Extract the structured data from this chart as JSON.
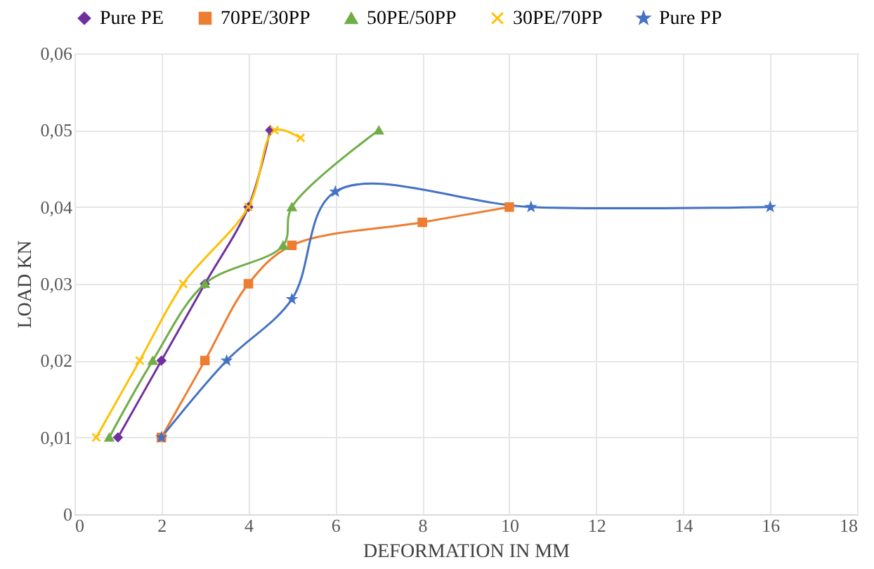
{
  "chart_data": {
    "type": "line",
    "xlabel": "DEFORMATION IN MM",
    "ylabel": "LOAD KN",
    "xlim": [
      0,
      18
    ],
    "xticks": [
      0,
      2,
      4,
      6,
      8,
      10,
      12,
      14,
      16,
      18
    ],
    "ylim": [
      0,
      0.06
    ],
    "yticks": [
      0,
      {
        "value": 0.01,
        "label": "0,01"
      },
      {
        "value": 0.02,
        "label": "0,02"
      },
      {
        "value": 0.03,
        "label": "0,03"
      },
      {
        "value": 0.04,
        "label": "0,04"
      },
      {
        "value": 0.05,
        "label": "0,05"
      },
      {
        "value": 0.06,
        "label": "0,06"
      }
    ],
    "grid": true,
    "legend": "top",
    "line_style": "solid",
    "series": [
      {
        "name": "Pure PE",
        "color": "#7030a0",
        "marker": "diamond",
        "x": [
          1,
          2,
          3,
          4,
          4.5
        ],
        "values": [
          0.01,
          0.02,
          0.03,
          0.04,
          0.05
        ]
      },
      {
        "name": "70PE/30PP",
        "color": "#ed7d31",
        "marker": "square",
        "x": [
          2,
          3,
          4,
          5,
          8,
          10
        ],
        "values": [
          0.01,
          0.02,
          0.03,
          0.035,
          0.038,
          0.04
        ]
      },
      {
        "name": "50PE/50PP",
        "color": "#70ad47",
        "marker": "triangle",
        "x": [
          0.8,
          1.8,
          3,
          4.8,
          5,
          7
        ],
        "values": [
          0.01,
          0.02,
          0.03,
          0.035,
          0.04,
          0.05
        ]
      },
      {
        "name": "30PE/70PP",
        "color": "#ffc000",
        "marker": "cross",
        "x": [
          0.5,
          1.5,
          2.5,
          4,
          4.6,
          5.2
        ],
        "values": [
          0.01,
          0.02,
          0.03,
          0.04,
          0.05,
          0.049
        ]
      },
      {
        "name": "Pure PP",
        "color": "#4472c4",
        "marker": "star",
        "x": [
          2,
          3.5,
          5,
          6,
          10.5,
          16
        ],
        "values": [
          0.01,
          0.02,
          0.028,
          0.042,
          0.04,
          0.04
        ]
      }
    ]
  }
}
